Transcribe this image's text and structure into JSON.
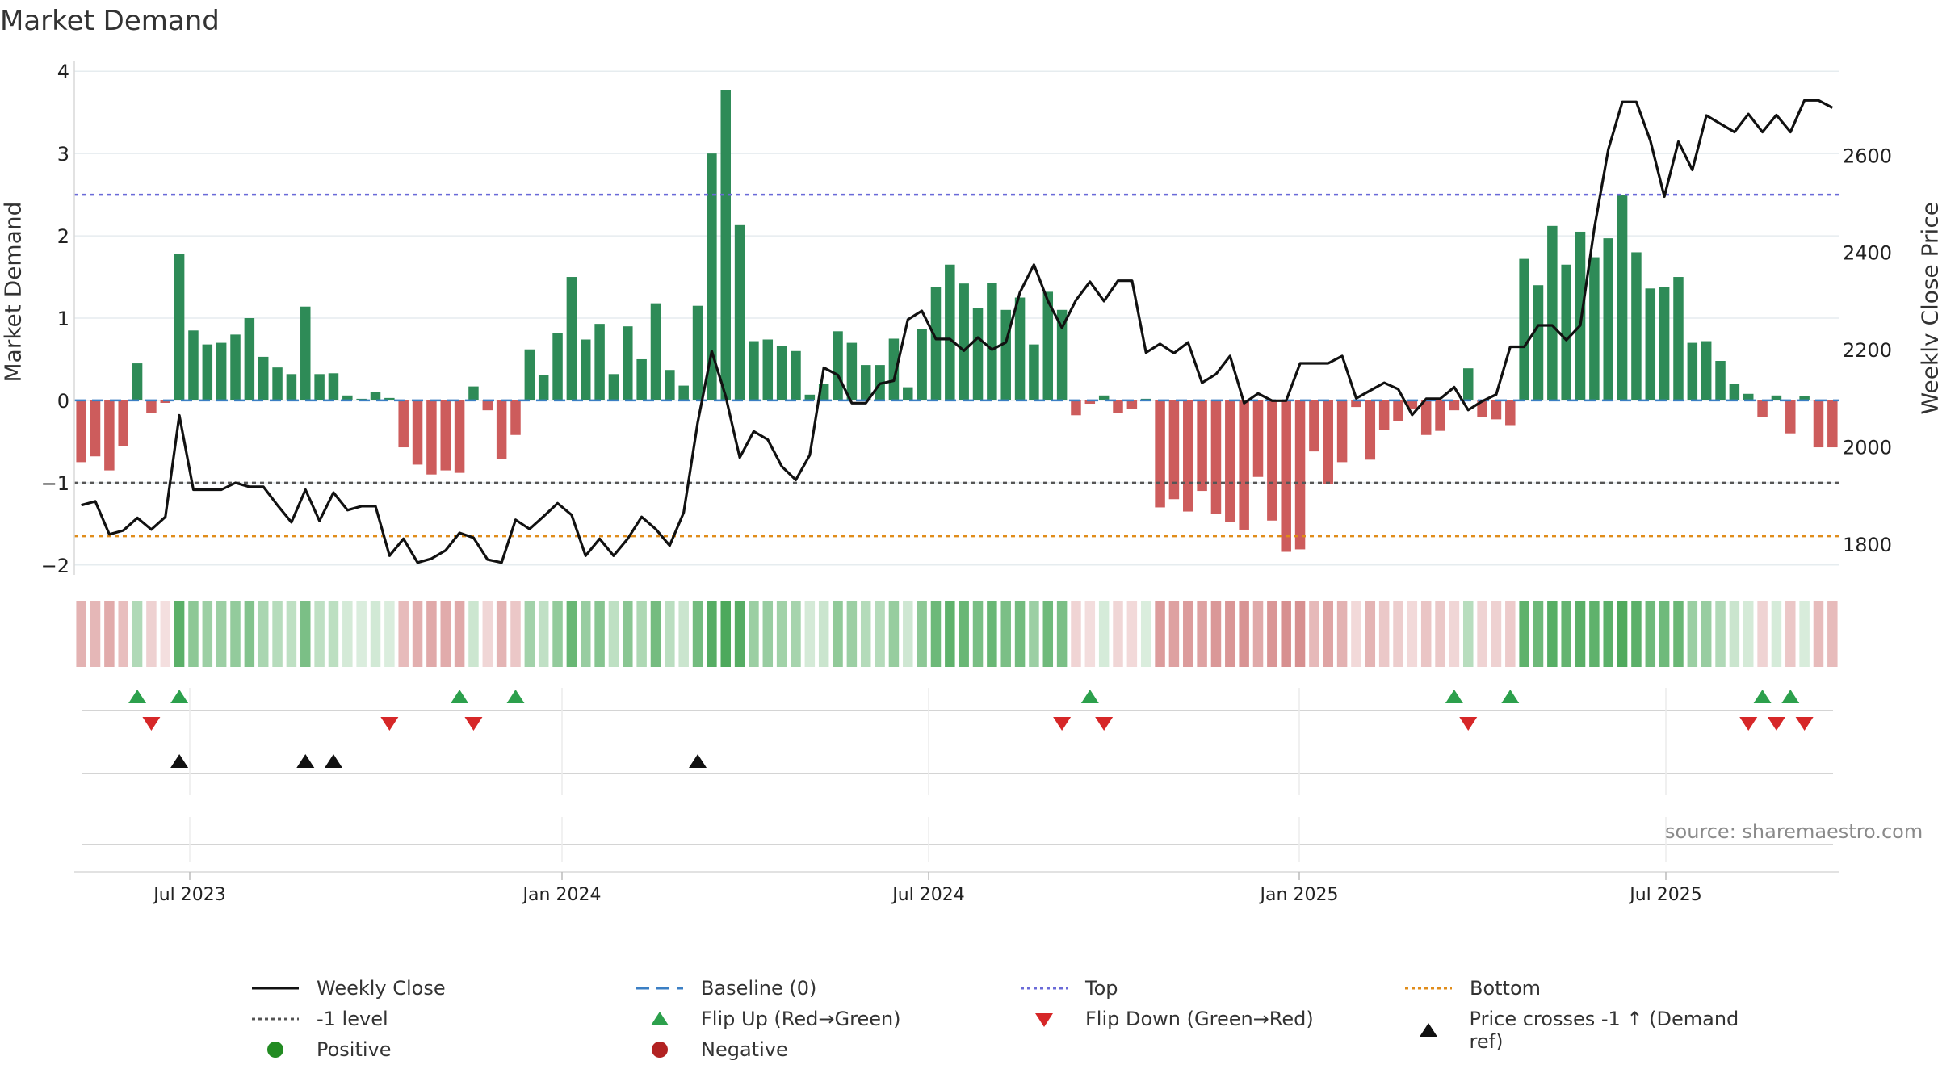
{
  "chart_data": {
    "type": "bar",
    "title": "Market Demand",
    "ylabel": "Market Demand",
    "y2label": "Weekly Close Price",
    "ylim": [
      -2.1,
      4.1
    ],
    "y2lim": [
      1740,
      2790
    ],
    "yticks": [
      "4",
      "3",
      "2",
      "1",
      "0",
      "−1",
      "−2"
    ],
    "y2ticks": [
      "2600",
      "2400",
      "2200",
      "2000",
      "1800"
    ],
    "xticks": [
      "Jul 2023",
      "Jan 2024",
      "Jul 2024",
      "Jan 2025",
      "Jul 2025"
    ],
    "reference_lines": {
      "top": 2.5,
      "minus_one": -1,
      "bottom": -1.65,
      "baseline": 0
    },
    "demand": [
      -0.75,
      -0.68,
      -0.85,
      -0.55,
      0.45,
      -0.15,
      -0.03,
      1.78,
      0.85,
      0.68,
      0.7,
      0.8,
      1.0,
      0.53,
      0.4,
      0.32,
      1.14,
      0.32,
      0.33,
      0.06,
      0.02,
      0.1,
      0.03,
      -0.57,
      -0.78,
      -0.9,
      -0.85,
      -0.88,
      0.17,
      -0.12,
      -0.71,
      -0.42,
      0.62,
      0.31,
      0.82,
      1.5,
      0.74,
      0.93,
      0.32,
      0.9,
      0.5,
      1.18,
      0.37,
      0.18,
      1.15,
      3.0,
      3.77,
      2.13,
      0.72,
      0.74,
      0.66,
      0.6,
      0.07,
      0.2,
      0.84,
      0.7,
      0.43,
      0.43,
      0.75,
      0.16,
      0.87,
      1.38,
      1.65,
      1.42,
      1.12,
      1.43,
      1.1,
      1.25,
      0.68,
      1.32,
      1.1,
      -0.18,
      -0.04,
      0.06,
      -0.15,
      -0.1,
      0.02,
      -1.3,
      -1.2,
      -1.35,
      -1.1,
      -1.38,
      -1.48,
      -1.57,
      -0.93,
      -1.46,
      -1.84,
      -1.81,
      -0.62,
      -1.02,
      -0.75,
      -0.08,
      -0.72,
      -0.36,
      -0.25,
      -0.1,
      -0.42,
      -0.37,
      -0.12,
      0.39,
      -0.2,
      -0.23,
      -0.3,
      1.72,
      1.4,
      2.12,
      1.65,
      2.05,
      1.74,
      1.97,
      2.5,
      1.8,
      1.36,
      1.38,
      1.5,
      0.7,
      0.72,
      0.48,
      0.2,
      0.08,
      -0.2,
      0.06,
      -0.4,
      0.05,
      -0.57,
      -0.57
    ],
    "price": [
      1880,
      1888,
      1820,
      1828,
      1854,
      1830,
      1856,
      2065,
      1912,
      1912,
      1912,
      1926,
      1918,
      1918,
      1880,
      1845,
      1912,
      1848,
      1906,
      1870,
      1878,
      1878,
      1776,
      1811,
      1762,
      1770,
      1787,
      1823,
      1813,
      1768,
      1762,
      1850,
      1831,
      1857,
      1884,
      1860,
      1776,
      1811,
      1776,
      1811,
      1856,
      1831,
      1797,
      1865,
      2050,
      2197,
      2104,
      1978,
      2032,
      2015,
      1960,
      1932,
      1983,
      2163,
      2148,
      2090,
      2090,
      2130,
      2136,
      2262,
      2280,
      2222,
      2222,
      2198,
      2225,
      2200,
      2215,
      2318,
      2375,
      2300,
      2245,
      2302,
      2340,
      2300,
      2342,
      2342,
      2194,
      2212,
      2193,
      2215,
      2132,
      2150,
      2187,
      2090,
      2110,
      2095,
      2095,
      2172,
      2172,
      2172,
      2187,
      2100,
      2116,
      2132,
      2119,
      2066,
      2099,
      2099,
      2123,
      2076,
      2094,
      2108,
      2206,
      2206,
      2250,
      2250,
      2220,
      2250,
      2450,
      2612,
      2710,
      2710,
      2630,
      2515,
      2628,
      2570,
      2682,
      2665,
      2648,
      2685,
      2648,
      2683,
      2648,
      2713,
      2713,
      2698
    ],
    "flip_up_idx": [
      4,
      7,
      27,
      31,
      72,
      98,
      102,
      120,
      122
    ],
    "flip_down_idx": [
      5,
      22,
      28,
      70,
      73,
      99,
      119,
      121,
      123
    ],
    "price_cross_idx": [
      7,
      16,
      18,
      44
    ],
    "shade_levels": [
      -0.38,
      -0.34,
      -0.43,
      -0.28,
      0.3,
      -0.12,
      -0.02,
      0.9,
      0.55,
      0.44,
      0.45,
      0.52,
      0.62,
      0.35,
      0.26,
      0.21,
      0.68,
      0.21,
      0.22,
      0.05,
      0.02,
      0.07,
      0.02,
      -0.3,
      -0.4,
      -0.45,
      -0.43,
      -0.44,
      0.11,
      -0.09,
      -0.36,
      -0.21,
      0.4,
      0.2,
      0.52,
      0.8,
      0.47,
      0.6,
      0.21,
      0.58,
      0.32,
      0.72,
      0.24,
      0.12,
      0.73,
      0.95,
      1.0,
      0.95,
      0.46,
      0.47,
      0.42,
      0.38,
      0.05,
      0.13,
      0.53,
      0.44,
      0.28,
      0.28,
      0.48,
      0.1,
      0.55,
      0.78,
      0.88,
      0.8,
      0.69,
      0.81,
      0.68,
      0.74,
      0.44,
      0.77,
      0.68,
      -0.1,
      -0.03,
      0.04,
      -0.09,
      -0.06,
      0.01,
      -0.55,
      -0.52,
      -0.56,
      -0.5,
      -0.58,
      -0.6,
      -0.62,
      -0.45,
      -0.6,
      -0.65,
      -0.65,
      -0.32,
      -0.48,
      -0.38,
      -0.05,
      -0.36,
      -0.2,
      -0.15,
      -0.06,
      -0.22,
      -0.2,
      -0.08,
      0.25,
      -0.11,
      -0.13,
      -0.17,
      0.88,
      0.78,
      0.93,
      0.85,
      0.92,
      0.87,
      0.9,
      0.98,
      0.9,
      0.76,
      0.77,
      0.8,
      0.46,
      0.47,
      0.31,
      0.13,
      0.05,
      -0.11,
      0.04,
      -0.21,
      0.03,
      -0.3,
      -0.3
    ],
    "colors": {
      "positive": "#2e8b57",
      "negative": "#cd5c5c",
      "price": "#111111",
      "top": "#6a6ad8",
      "minus_one": "#555555",
      "bottom": "#e08c1a",
      "baseline": "#3b7fc4",
      "flip_up": "#2ca04c",
      "flip_down": "#d62728",
      "cross": "#111111",
      "legend_positive": "#228b22",
      "legend_negative": "#b22222"
    }
  },
  "legend": [
    {
      "label": "Weekly Close",
      "icon": "solid-line"
    },
    {
      "label": "Baseline (0)",
      "icon": "dashed-line"
    },
    {
      "label": "Top",
      "icon": "dotted-line"
    },
    {
      "label": "Bottom",
      "icon": "dotted-line"
    },
    {
      "label": "-1 level",
      "icon": "dotted-line"
    },
    {
      "label": "Flip Up (Red→Green)",
      "icon": "triangle-up"
    },
    {
      "label": "Flip Down (Green→Red)",
      "icon": "triangle-down"
    },
    {
      "label": "Price crosses -1 ↑ (Demand ref)",
      "icon": "triangle-up"
    },
    {
      "label": "Positive",
      "icon": "circle"
    },
    {
      "label": "Negative",
      "icon": "circle"
    }
  ],
  "source": "source: sharemaestro.com"
}
